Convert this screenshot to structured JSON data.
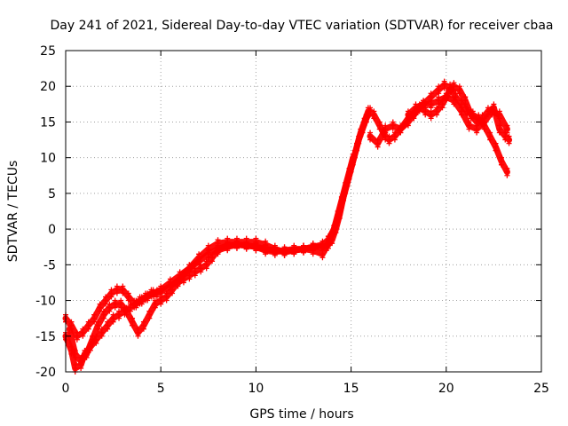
{
  "chart_data": {
    "type": "scatter",
    "title": "Day 241 of 2021, Sidereal Day-to-day VTEC variation (SDTVAR) for receiver cbaa",
    "xlabel": "GPS time / hours",
    "ylabel": "SDTVAR / TECUs",
    "xlim": [
      0,
      25
    ],
    "ylim": [
      -20,
      25
    ],
    "x_ticks": [
      0,
      5,
      10,
      15,
      20,
      25
    ],
    "y_ticks": [
      -20,
      -15,
      -10,
      -5,
      0,
      5,
      10,
      15,
      20,
      25
    ],
    "grid": true,
    "marker": "+",
    "series": [
      {
        "name": "SDTVAR",
        "color": "#ff0000",
        "tracks": [
          {
            "x": [
              0.0,
              0.3,
              0.5,
              0.8,
              1.0,
              1.3,
              1.6,
              1.9,
              2.2,
              2.5,
              2.8,
              3.1,
              3.4,
              3.7,
              4.0,
              4.3,
              4.6,
              5.0,
              5.5,
              6.0,
              6.5,
              7.0,
              7.5,
              8.0,
              8.5,
              9.0,
              9.5,
              10.0,
              10.5,
              11.0,
              11.5,
              12.0,
              12.5,
              13.0,
              13.5,
              13.8,
              14.0,
              14.2,
              14.4,
              14.6,
              14.8,
              15.0,
              15.2,
              15.4,
              15.6,
              15.8
            ],
            "y": [
              -15.0,
              -17.0,
              -19.5,
              -19.0,
              -17.5,
              -16.5,
              -15.5,
              -14.5,
              -13.5,
              -12.5,
              -12.0,
              -11.5,
              -11.0,
              -10.5,
              -10.0,
              -9.5,
              -9.0,
              -8.5,
              -7.5,
              -6.5,
              -5.5,
              -4.5,
              -3.5,
              -2.8,
              -2.3,
              -2.2,
              -2.3,
              -2.5,
              -2.8,
              -3.0,
              -3.2,
              -3.0,
              -2.8,
              -2.5,
              -2.5,
              -2.2,
              -1.5,
              0.0,
              2.0,
              4.5,
              6.5,
              8.5,
              10.5,
              12.5,
              14.0,
              15.5
            ]
          },
          {
            "x": [
              0.0,
              0.3,
              0.6,
              0.9,
              1.2,
              1.5,
              1.8,
              2.1,
              2.4,
              2.7,
              3.0,
              3.3,
              3.6,
              3.9,
              4.2,
              4.5,
              4.8,
              5.0,
              5.5,
              6.0,
              6.5,
              7.0,
              7.5,
              8.0,
              8.5,
              9.0,
              9.5,
              10.0,
              10.5,
              11.0,
              11.5,
              12.0,
              12.5,
              13.0,
              13.5,
              13.8,
              14.1,
              14.3,
              14.5,
              14.7,
              14.9,
              15.1,
              15.3,
              15.5,
              15.7,
              15.9
            ],
            "y": [
              -12.5,
              -13.5,
              -15.0,
              -14.5,
              -13.5,
              -12.5,
              -11.0,
              -10.0,
              -9.0,
              -8.5,
              -8.5,
              -9.5,
              -10.5,
              -10.0,
              -9.5,
              -9.0,
              -9.0,
              -8.8,
              -8.0,
              -7.0,
              -5.5,
              -4.0,
              -2.8,
              -2.0,
              -1.8,
              -1.8,
              -1.8,
              -1.8,
              -2.2,
              -2.8,
              -3.2,
              -3.0,
              -2.8,
              -2.5,
              -2.2,
              -1.5,
              0.0,
              1.5,
              3.5,
              5.5,
              7.5,
              9.5,
              11.5,
              13.5,
              15.0,
              16.5
            ]
          },
          {
            "x": [
              0.2,
              0.5,
              0.8,
              1.1,
              1.4,
              1.7,
              2.0,
              2.3,
              2.6,
              2.9,
              3.2,
              3.5,
              3.8,
              4.1,
              4.4,
              4.7,
              5.0,
              5.3,
              5.6,
              5.9,
              6.2,
              6.5,
              6.8,
              7.1,
              7.4,
              7.7,
              8.0,
              8.5,
              9.0,
              9.5,
              10.0,
              10.5,
              11.0,
              11.5,
              12.0,
              12.5,
              13.0,
              13.5,
              13.7,
              13.9,
              14.1,
              14.3,
              14.5,
              14.7,
              14.9,
              15.1
            ],
            "y": [
              -14.0,
              -17.5,
              -18.5,
              -17.5,
              -15.5,
              -13.5,
              -12.0,
              -11.0,
              -10.5,
              -10.5,
              -11.5,
              -13.0,
              -14.5,
              -13.5,
              -12.0,
              -10.5,
              -10.0,
              -9.5,
              -8.5,
              -7.5,
              -7.0,
              -6.5,
              -6.0,
              -5.5,
              -5.0,
              -4.0,
              -3.0,
              -2.5,
              -2.2,
              -2.3,
              -2.5,
              -3.0,
              -3.2,
              -3.0,
              -2.8,
              -2.8,
              -3.0,
              -3.5,
              -2.5,
              -1.5,
              0.0,
              2.0,
              4.0,
              6.0,
              8.0,
              10.0
            ]
          },
          {
            "x": [
              15.8,
              16.0,
              16.2,
              16.5,
              16.8,
              17.0,
              17.3,
              17.6,
              18.0,
              18.4,
              18.8,
              19.2,
              19.6,
              19.9,
              20.2,
              20.5,
              20.8,
              21.1,
              21.4,
              21.7,
              22.0,
              22.3,
              22.6,
              22.9,
              23.2
            ],
            "y": [
              15.5,
              16.5,
              16.0,
              14.5,
              13.0,
              12.5,
              13.0,
              14.0,
              15.5,
              16.5,
              17.5,
              18.5,
              19.5,
              20.2,
              19.8,
              18.5,
              17.5,
              16.5,
              16.0,
              15.5,
              14.5,
              13.0,
              11.5,
              9.5,
              8.0
            ]
          },
          {
            "x": [
              16.0,
              16.4,
              16.8,
              17.2,
              17.6,
              18.0,
              18.3,
              18.6,
              18.9,
              19.2,
              19.5,
              19.8,
              20.1,
              20.4,
              20.7,
              21.0,
              21.3,
              21.6,
              21.9,
              22.2,
              22.5,
              22.8,
              23.1,
              23.3
            ],
            "y": [
              13.0,
              12.0,
              14.0,
              14.5,
              14.0,
              15.0,
              16.0,
              17.0,
              16.5,
              16.0,
              16.5,
              17.5,
              19.0,
              20.0,
              19.5,
              18.0,
              16.0,
              15.0,
              15.5,
              16.5,
              17.0,
              14.0,
              13.0,
              12.5
            ]
          },
          {
            "x": [
              18.0,
              18.4,
              18.8,
              19.2,
              19.6,
              20.0,
              20.4,
              20.8,
              21.2,
              21.6,
              22.0,
              22.4,
              22.8,
              23.2
            ],
            "y": [
              16.0,
              17.0,
              17.5,
              17.5,
              18.0,
              18.5,
              18.0,
              16.5,
              14.5,
              14.0,
              15.0,
              16.5,
              16.0,
              14.0
            ]
          }
        ]
      }
    ]
  }
}
